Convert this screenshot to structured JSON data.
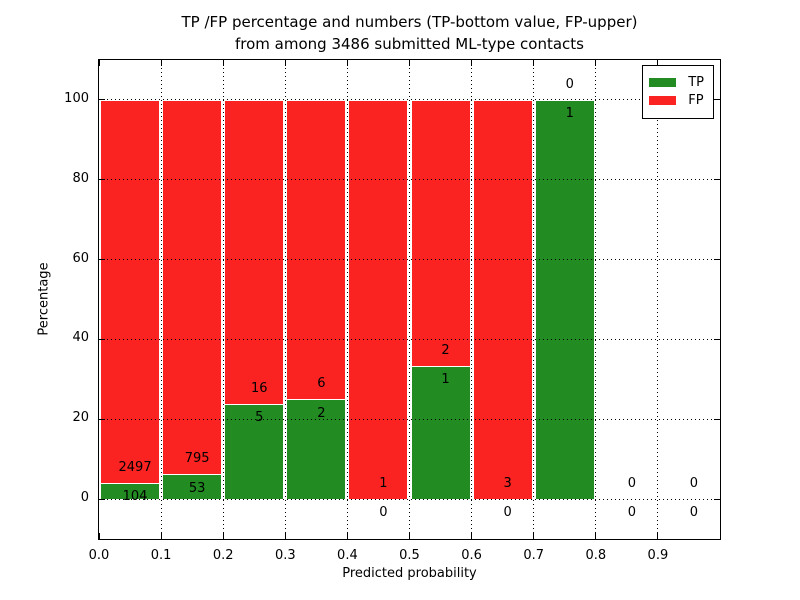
{
  "chart_data": {
    "type": "bar",
    "stacked": true,
    "title_line1": "TP /FP percentage and numbers (TP-bottom value, FP-upper)",
    "title_line2": "from among 3486 submitted ML-type contacts",
    "total_contacts": 3486,
    "xlabel": "Predicted probability",
    "ylabel": "Percentage",
    "xlim": [
      0.0,
      1.0
    ],
    "ylim": [
      -10,
      110
    ],
    "xtick_values": [
      0.0,
      0.1,
      0.2,
      0.3,
      0.4,
      0.5,
      0.6,
      0.7,
      0.8,
      0.9
    ],
    "xtick_labels": [
      "0.0",
      "0.1",
      "0.2",
      "0.3",
      "0.4",
      "0.5",
      "0.6",
      "0.7",
      "0.8",
      "0.9"
    ],
    "ytick_values": [
      0,
      20,
      40,
      60,
      80,
      100
    ],
    "ytick_labels": [
      "0",
      "20",
      "40",
      "60",
      "80",
      "100"
    ],
    "grid": "dotted",
    "legend": {
      "position": "upper right",
      "items": [
        {
          "label": "TP",
          "color": "#228b22"
        },
        {
          "label": "FP",
          "color": "#fb2222"
        }
      ]
    },
    "bins": [
      {
        "range": [
          0.0,
          0.1
        ],
        "tp": 104,
        "fp": 2497,
        "tp_pct": 4.0,
        "fp_pct": 96.0
      },
      {
        "range": [
          0.1,
          0.2
        ],
        "tp": 53,
        "fp": 795,
        "tp_pct": 6.25,
        "fp_pct": 93.75
      },
      {
        "range": [
          0.2,
          0.3
        ],
        "tp": 5,
        "fp": 16,
        "tp_pct": 23.81,
        "fp_pct": 76.19
      },
      {
        "range": [
          0.3,
          0.4
        ],
        "tp": 2,
        "fp": 6,
        "tp_pct": 25.0,
        "fp_pct": 75.0
      },
      {
        "range": [
          0.4,
          0.5
        ],
        "tp": 0,
        "fp": 1,
        "tp_pct": 0.0,
        "fp_pct": 100.0
      },
      {
        "range": [
          0.5,
          0.6
        ],
        "tp": 1,
        "fp": 2,
        "tp_pct": 33.33,
        "fp_pct": 66.67
      },
      {
        "range": [
          0.6,
          0.7
        ],
        "tp": 0,
        "fp": 3,
        "tp_pct": 0.0,
        "fp_pct": 100.0
      },
      {
        "range": [
          0.7,
          0.8
        ],
        "tp": 1,
        "fp": 0,
        "tp_pct": 100.0,
        "fp_pct": 0.0
      },
      {
        "range": [
          0.8,
          0.9
        ],
        "tp": 0,
        "fp": 0,
        "tp_pct": 0.0,
        "fp_pct": 0.0
      },
      {
        "range": [
          0.9,
          1.0
        ],
        "tp": 0,
        "fp": 0,
        "tp_pct": 0.0,
        "fp_pct": 0.0
      }
    ]
  }
}
